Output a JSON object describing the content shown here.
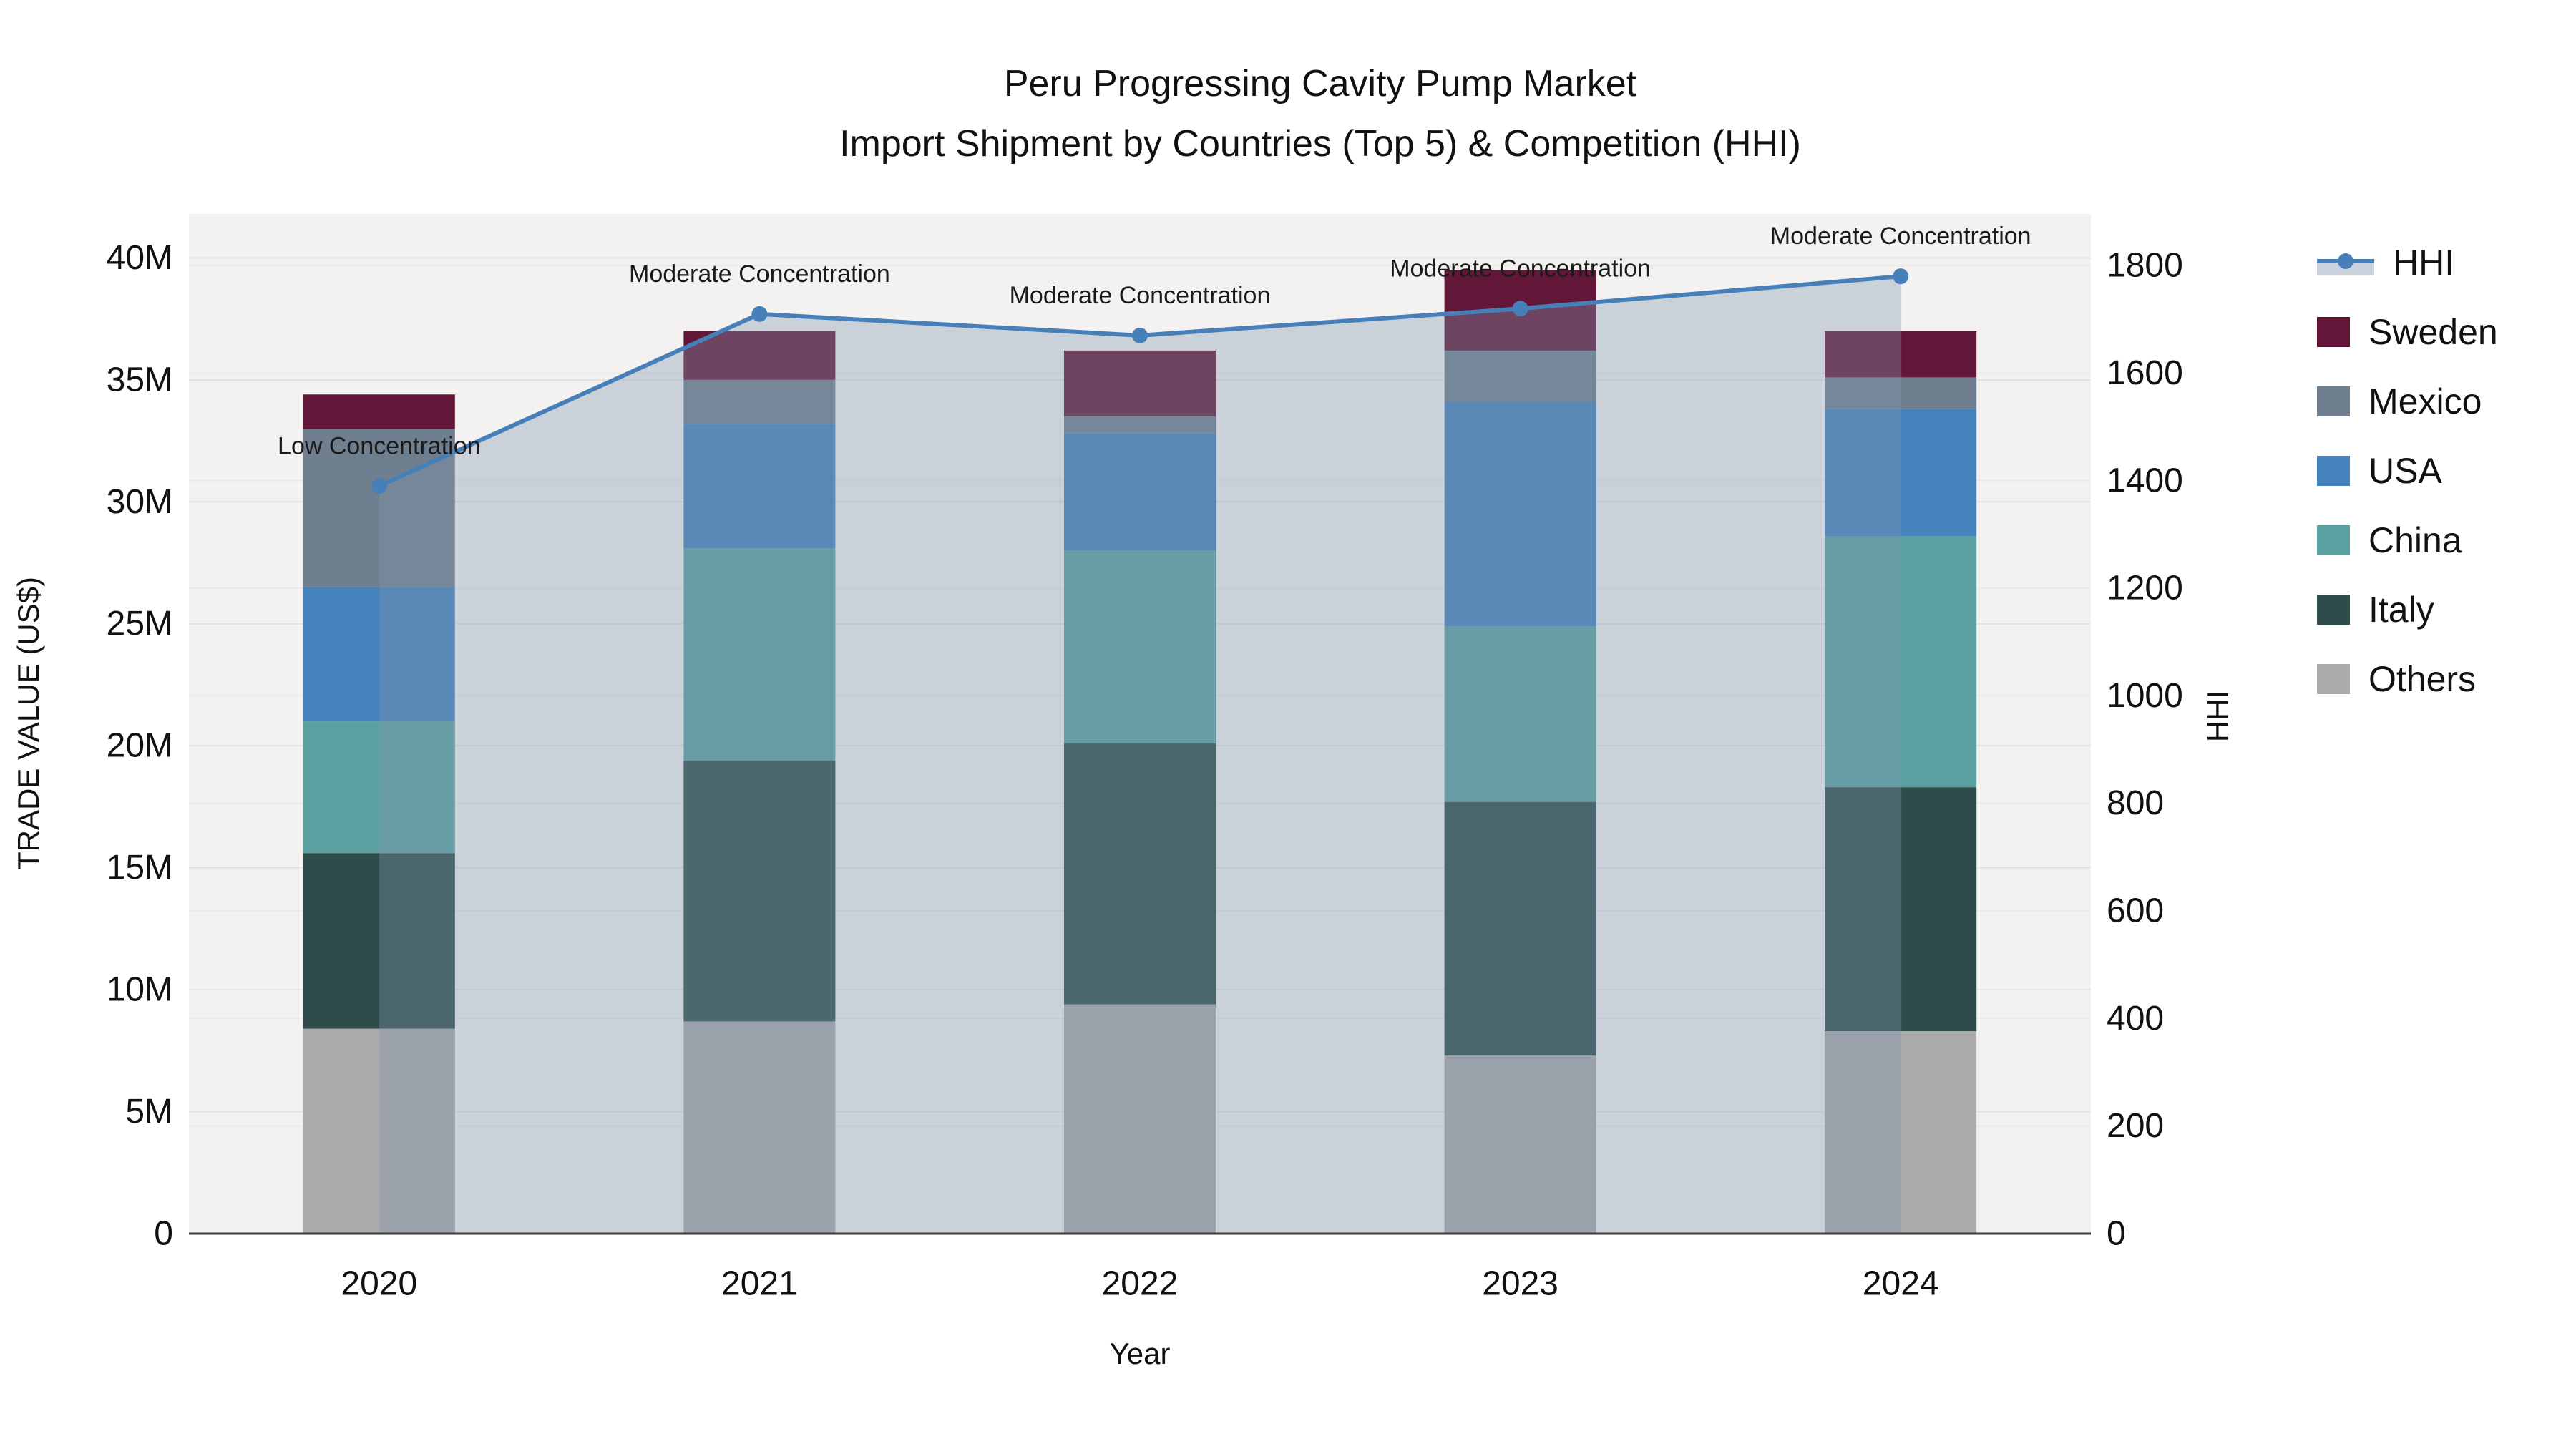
{
  "title": {
    "line1": "Peru Progressing Cavity Pump Market",
    "line2": "Import Shipment by Countries (Top 5) & Competition (HHI)"
  },
  "chart_data": {
    "type": "bar",
    "stacked": true,
    "categories": [
      "2020",
      "2021",
      "2022",
      "2023",
      "2024"
    ],
    "bar_unit": "million US$",
    "series": [
      {
        "name": "Others",
        "color": "#a9aaa9",
        "values": [
          8.4,
          8.7,
          9.4,
          7.3,
          8.3
        ]
      },
      {
        "name": "Italy",
        "color": "#2e4c49",
        "values": [
          7.2,
          10.7,
          10.7,
          10.4,
          10.0
        ]
      },
      {
        "name": "China",
        "color": "#5ca1a1",
        "values": [
          5.4,
          8.7,
          7.9,
          7.2,
          10.3
        ]
      },
      {
        "name": "USA",
        "color": "#4483bc",
        "values": [
          5.5,
          5.1,
          4.8,
          9.2,
          5.2
        ]
      },
      {
        "name": "Mexico",
        "color": "#6f7f8f",
        "values": [
          6.5,
          1.8,
          0.7,
          2.1,
          1.3
        ]
      },
      {
        "name": "Sweden",
        "color": "#621738",
        "values": [
          1.4,
          2.0,
          2.7,
          3.3,
          1.9
        ]
      }
    ],
    "line_series": {
      "name": "HHI",
      "color": "#4780b8",
      "area_color": "rgba(131,149,174,0.36)",
      "values": [
        1390,
        1710,
        1670,
        1720,
        1780
      ]
    },
    "annotations": [
      "Low Concentration",
      "Moderate Concentration",
      "Moderate Concentration",
      "Moderate Concentration",
      "Moderate Concentration"
    ],
    "x_axis": {
      "title": "Year"
    },
    "left_axis": {
      "title": "TRADE VALUE (US$)",
      "tick_labels": [
        "0",
        "5M",
        "10M",
        "15M",
        "20M",
        "25M",
        "30M",
        "35M",
        "40M"
      ],
      "tick_values": [
        0,
        5,
        10,
        15,
        20,
        25,
        30,
        35,
        40
      ],
      "range_max": 41.8
    },
    "right_axis": {
      "title": "HHI",
      "tick_labels": [
        "0",
        "200",
        "400",
        "600",
        "800",
        "1000",
        "1200",
        "1400",
        "1600",
        "1800"
      ],
      "tick_values": [
        0,
        200,
        400,
        600,
        800,
        1000,
        1200,
        1400,
        1600,
        1800
      ],
      "range_max": 1896
    },
    "legend_order": [
      "HHI",
      "Sweden",
      "Mexico",
      "USA",
      "China",
      "Italy",
      "Others"
    ],
    "style": {
      "plot_bg": "#f3f2f1",
      "grid_left": "#e2e2e2",
      "grid_right": "#eaeaea",
      "baseline": "#3f3f3f",
      "text": "#111111"
    }
  }
}
